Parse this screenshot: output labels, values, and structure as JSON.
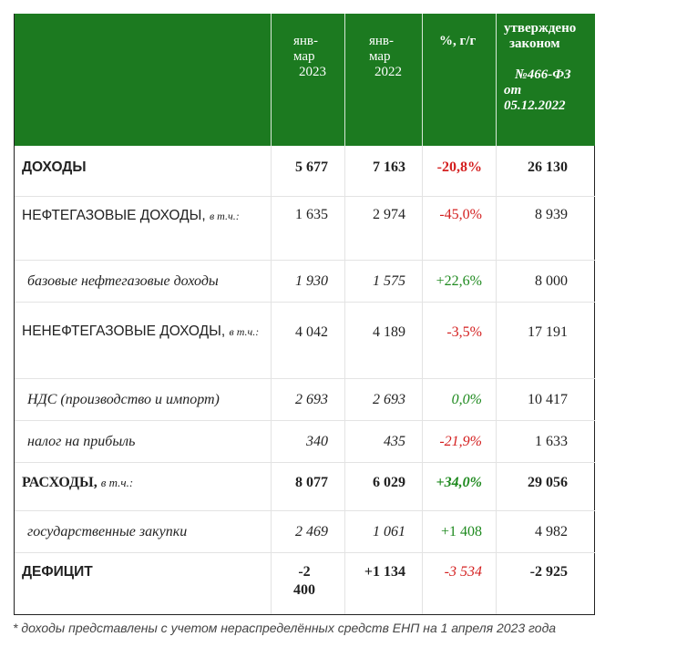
{
  "header": {
    "col1": [
      "янв-",
      "мар",
      "2023"
    ],
    "col2": [
      "янв-",
      "мар",
      "2022"
    ],
    "col3": "%, г/г",
    "col4": [
      "утверждено",
      "законом",
      "№466-ФЗ",
      "от",
      "05.12.2022"
    ]
  },
  "rows": [
    {
      "label": "ДОХОДЫ",
      "sub": "",
      "v1": "5 677",
      "v2": "7 163",
      "v3": "-20,8%",
      "v4": "26 130"
    },
    {
      "label": "НЕФТЕГАЗОВЫЕ ДОХОДЫ,",
      "sub": "в т.ч.:",
      "v1": "1 635",
      "v2": "2 974",
      "v3": "-45,0%",
      "v4": "8 939"
    },
    {
      "label": "базовые нефтегазовые доходы",
      "sub": "",
      "v1": "1 930",
      "v2": "1 575",
      "v3": "+22,6%",
      "v4": "8 000"
    },
    {
      "label": "НЕНЕФТЕГАЗОВЫЕ ДОХОДЫ,",
      "sub": "в т.ч.:",
      "v1": "4 042",
      "v2": "4 189",
      "v3": "-3,5%",
      "v4": "17 191"
    },
    {
      "label": "НДС (производство и импорт)",
      "sub": "",
      "v1": "2 693",
      "v2": "2 693",
      "v3": "0,0%",
      "v4": "10 417"
    },
    {
      "label": "налог на прибыль",
      "sub": "",
      "v1": "340",
      "v2": "435",
      "v3": "-21,9%",
      "v4": "1 633"
    },
    {
      "label": "РАСХОДЫ,",
      "sub": "в т.ч.:",
      "v1": "8 077",
      "v2": "6 029",
      "v3": "+34,0%",
      "v4": "29 056"
    },
    {
      "label": "государственные закупки",
      "sub": "",
      "v1": "2 469",
      "v2": "1 061",
      "v3": "+1 408",
      "v4": "4 982"
    },
    {
      "label": "ДЕФИЦИТ",
      "sub": "",
      "v1a": "-2",
      "v1b": "400",
      "v2": "+1 134",
      "v3": "-3 534",
      "v4": "-2 925"
    }
  ],
  "colors": {
    "header_bg": "#1c7a20",
    "negative": "#d42020",
    "positive": "#1f8a1f"
  },
  "footnote": "* доходы представлены с учетом нераспределённых средств ЕНП на 1 апреля 2023 года"
}
